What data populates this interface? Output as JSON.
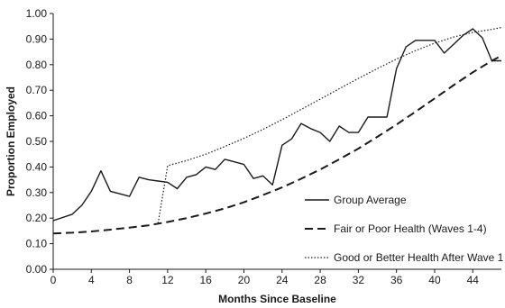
{
  "chart_data": {
    "type": "line",
    "xlabel": "Months Since Baseline",
    "ylabel": "Proportion Employed",
    "xlim": [
      0,
      47
    ],
    "ylim": [
      0,
      1
    ],
    "x_ticks": [
      "0",
      "4",
      "8",
      "12",
      "16",
      "20",
      "24",
      "28",
      "32",
      "36",
      "40",
      "44"
    ],
    "x_tick_values": [
      0,
      4,
      8,
      12,
      16,
      20,
      24,
      28,
      32,
      36,
      40,
      44
    ],
    "y_ticks": [
      "0.00",
      "0.10",
      "0.20",
      "0.30",
      "0.40",
      "0.50",
      "0.60",
      "0.70",
      "0.80",
      "0.90",
      "1.00"
    ],
    "y_tick_values": [
      0,
      0.1,
      0.2,
      0.3,
      0.4,
      0.5,
      0.6,
      0.7,
      0.8,
      0.9,
      1.0
    ],
    "grid": false,
    "legend_position": "bottom-right",
    "series": [
      {
        "name": "Group Average",
        "style": "solid",
        "color": "#1a1a1a",
        "x": [
          0,
          2,
          3,
          4,
          5,
          6,
          7,
          8,
          9,
          10,
          11,
          12,
          13,
          14,
          15,
          16,
          17,
          18,
          19,
          20,
          21,
          22,
          23,
          24,
          25,
          26,
          27,
          28,
          29,
          30,
          31,
          32,
          33,
          34,
          35,
          36,
          37,
          38,
          39,
          40,
          41,
          42,
          43,
          44,
          45,
          46,
          47
        ],
        "y": [
          0.19,
          0.215,
          0.25,
          0.305,
          0.385,
          0.305,
          0.295,
          0.285,
          0.36,
          0.35,
          0.345,
          0.34,
          0.315,
          0.36,
          0.37,
          0.4,
          0.39,
          0.43,
          0.42,
          0.41,
          0.355,
          0.365,
          0.33,
          0.485,
          0.51,
          0.57,
          0.55,
          0.535,
          0.5,
          0.56,
          0.535,
          0.535,
          0.595,
          0.595,
          0.595,
          0.785,
          0.87,
          0.895,
          0.895,
          0.895,
          0.845,
          0.88,
          0.915,
          0.94,
          0.905,
          0.815,
          0.815
        ]
      },
      {
        "name": "Fair or Poor Health (Waves 1-4)",
        "style": "dashed",
        "color": "#1a1a1a",
        "x": [
          0,
          2,
          4,
          6,
          8,
          10,
          12,
          14,
          16,
          18,
          20,
          22,
          24,
          26,
          28,
          30,
          32,
          34,
          36,
          38,
          40,
          42,
          44,
          46,
          47
        ],
        "y": [
          0.14,
          0.143,
          0.148,
          0.155,
          0.163,
          0.172,
          0.185,
          0.2,
          0.218,
          0.238,
          0.262,
          0.29,
          0.32,
          0.354,
          0.39,
          0.43,
          0.472,
          0.518,
          0.566,
          0.616,
          0.668,
          0.72,
          0.77,
          0.815,
          0.835
        ]
      },
      {
        "name": "Good or Better Health After Wave 1",
        "style": "dotted",
        "color": "#1a1a1a",
        "x": [
          11,
          12,
          14,
          16,
          18,
          20,
          22,
          24,
          26,
          28,
          30,
          32,
          34,
          36,
          38,
          40,
          42,
          44,
          46,
          47
        ],
        "y": [
          0.18,
          0.405,
          0.425,
          0.45,
          0.48,
          0.512,
          0.547,
          0.585,
          0.625,
          0.665,
          0.706,
          0.746,
          0.785,
          0.822,
          0.855,
          0.884,
          0.908,
          0.926,
          0.938,
          0.945
        ]
      }
    ]
  }
}
